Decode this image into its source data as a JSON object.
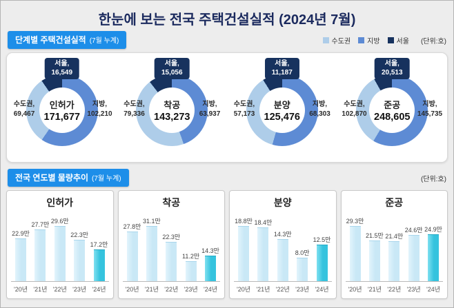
{
  "title": "한눈에 보는 전국 주택건설실적 (2024년 7월)",
  "colors": {
    "page_bg": "#ededed",
    "title_text": "#1b2a5e",
    "section_label_bg": "#1d8ee9",
    "sudogwon": "#aecde9",
    "jibang": "#5d8bd4",
    "seoul": "#17325e",
    "bar": "#c9e8f6",
    "bar_highlight": "#35c3de"
  },
  "section1": {
    "label": "단계별 주택건설실적",
    "sublabel": "(7월 누계)",
    "unit": "(단위:호)",
    "legend": [
      {
        "label": "수도권"
      },
      {
        "label": "지방"
      },
      {
        "label": "서울"
      }
    ],
    "donuts": [
      {
        "name": "인허가",
        "total": "171,677",
        "seoul_label": "서울,",
        "seoul_value": "16,549",
        "sudogwon_label": "수도권,",
        "sudogwon_value": "69,467",
        "jibang_label": "지방,",
        "jibang_value": "102,210"
      },
      {
        "name": "착공",
        "total": "143,273",
        "seoul_label": "서울,",
        "seoul_value": "15,056",
        "sudogwon_label": "수도권,",
        "sudogwon_value": "79,336",
        "jibang_label": "지방,",
        "jibang_value": "63,937"
      },
      {
        "name": "분양",
        "total": "125,476",
        "seoul_label": "서울,",
        "seoul_value": "11,187",
        "sudogwon_label": "수도권,",
        "sudogwon_value": "57,173",
        "jibang_label": "지방,",
        "jibang_value": "68,303"
      },
      {
        "name": "준공",
        "total": "248,605",
        "seoul_label": "서울,",
        "seoul_value": "20,513",
        "sudogwon_label": "수도권,",
        "sudogwon_value": "102,870",
        "jibang_label": "지방,",
        "jibang_value": "145,735"
      }
    ]
  },
  "section2": {
    "label": "전국 연도별 물량추이",
    "sublabel": "(7월 누계)",
    "unit": "(단위:호)"
  },
  "chart_data": [
    {
      "type": "pie",
      "subtype": "donut",
      "title": "인허가",
      "total": 171677,
      "slices": [
        {
          "label": "수도권",
          "value": 69467
        },
        {
          "label": "서울",
          "value": 16549
        },
        {
          "label": "지방",
          "value": 102210
        }
      ],
      "note": "서울 is a sub-segment of 수도권; center shows 수도권+지방 total"
    },
    {
      "type": "pie",
      "subtype": "donut",
      "title": "착공",
      "total": 143273,
      "slices": [
        {
          "label": "수도권",
          "value": 79336
        },
        {
          "label": "서울",
          "value": 15056
        },
        {
          "label": "지방",
          "value": 63937
        }
      ],
      "note": "서울 is a sub-segment of 수도권; center shows 수도권+지방 total"
    },
    {
      "type": "pie",
      "subtype": "donut",
      "title": "분양",
      "total": 125476,
      "slices": [
        {
          "label": "수도권",
          "value": 57173
        },
        {
          "label": "서울",
          "value": 11187
        },
        {
          "label": "지방",
          "value": 68303
        }
      ],
      "note": "서울 is a sub-segment of 수도권; center shows 수도권+지방 total"
    },
    {
      "type": "pie",
      "subtype": "donut",
      "title": "준공",
      "total": 248605,
      "slices": [
        {
          "label": "수도권",
          "value": 102870
        },
        {
          "label": "서울",
          "value": 20513
        },
        {
          "label": "지방",
          "value": 145735
        }
      ],
      "note": "서울 is a sub-segment of 수도권; center shows 수도권+지방 total"
    },
    {
      "type": "bar",
      "title": "인허가",
      "categories": [
        "'20년",
        "'21년",
        "'22년",
        "'23년",
        "'24년"
      ],
      "values": [
        22.9,
        27.7,
        29.6,
        22.3,
        17.2
      ],
      "labels": [
        "22.9만",
        "27.7만",
        "29.6만",
        "22.3만",
        "17.2만"
      ],
      "unit": "만 호",
      "highlight_index": 4
    },
    {
      "type": "bar",
      "title": "착공",
      "categories": [
        "'20년",
        "'21년",
        "'22년",
        "'23년",
        "'24년"
      ],
      "values": [
        27.8,
        31.1,
        22.3,
        11.2,
        14.3
      ],
      "labels": [
        "27.8만",
        "31.1만",
        "22.3만",
        "11.2만",
        "14.3만"
      ],
      "unit": "만 호",
      "highlight_index": 4
    },
    {
      "type": "bar",
      "title": "분양",
      "categories": [
        "'20년",
        "'21년",
        "'22년",
        "'23년",
        "'24년"
      ],
      "values": [
        18.8,
        18.4,
        14.3,
        8.0,
        12.5
      ],
      "labels": [
        "18.8만",
        "18.4만",
        "14.3만",
        "8.0만",
        "12.5만"
      ],
      "unit": "만 호",
      "highlight_index": 4
    },
    {
      "type": "bar",
      "title": "준공",
      "categories": [
        "'20년",
        "'21년",
        "'22년",
        "'23년",
        "'24년"
      ],
      "values": [
        29.3,
        21.5,
        21.4,
        24.6,
        24.9
      ],
      "labels": [
        "29.3만",
        "21.5만",
        "21.4만",
        "24.6만",
        "24.9만"
      ],
      "unit": "만 호",
      "highlight_index": 4
    }
  ]
}
